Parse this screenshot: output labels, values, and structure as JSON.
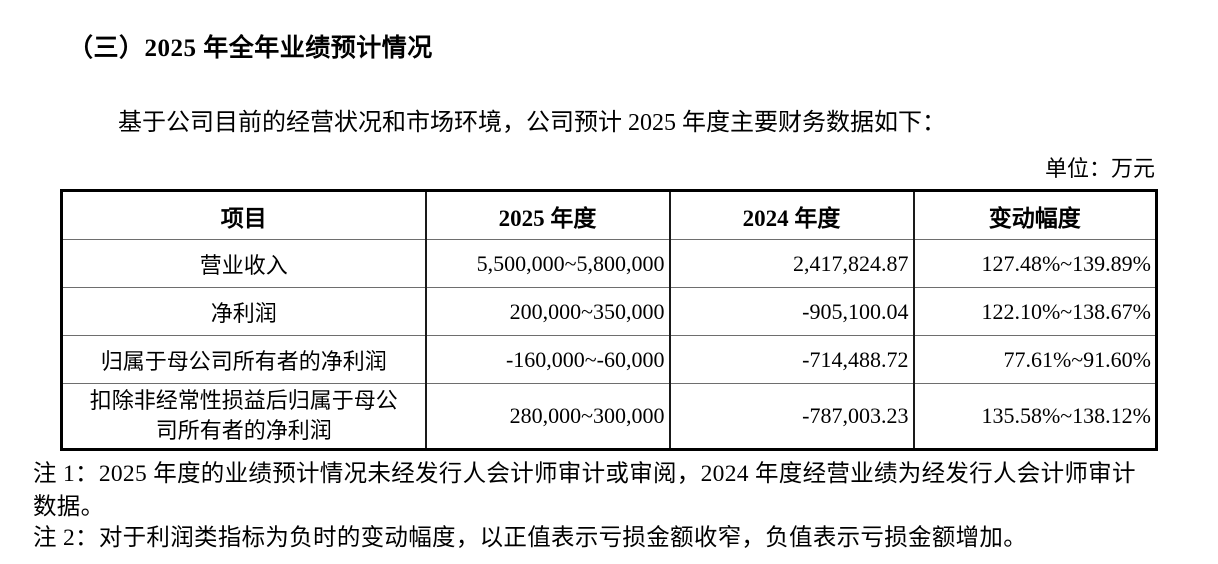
{
  "page": {
    "section_title": "（三）2025 年全年业绩预计情况",
    "intro": "基于公司目前的经营状况和市场环境，公司预计 2025 年度主要财务数据如下：",
    "unit_label": "单位：万元",
    "note_1": "注 1：2025 年度的业绩预计情况未经发行人会计师审计或审阅，2024 年度经营业绩为经发行人会计师审计数据。",
    "note_2": "注 2：对于利润类指标为负时的变动幅度，以正值表示亏损金额收窄，负值表示亏损金额增加。"
  },
  "table": {
    "headers": [
      "项目",
      "2025 年度",
      "2024 年度",
      "变动幅度"
    ],
    "rows": [
      {
        "item": "营业收入",
        "y2025": "5,500,000~5,800,000",
        "y2024": "2,417,824.87",
        "change": "127.48%~139.89%"
      },
      {
        "item": "净利润",
        "y2025": "200,000~350,000",
        "y2024": "-905,100.04",
        "change": "122.10%~138.67%"
      },
      {
        "item": "归属于母公司所有者的净利润",
        "y2025": "-160,000~-60,000",
        "y2024": "-714,488.72",
        "change": "77.61%~91.60%"
      },
      {
        "item": "扣除非经常性损益后归属于母公司所有者的净利润",
        "y2025": "280,000~300,000",
        "y2024": "-787,003.23",
        "change": "135.58%~138.12%"
      }
    ]
  }
}
